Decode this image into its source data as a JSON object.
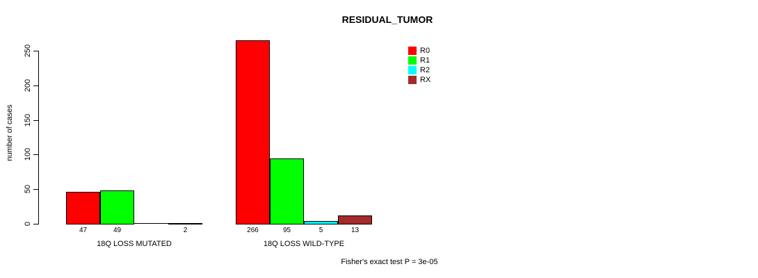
{
  "page": {
    "background": "#ffffff",
    "axis_color": "#000000",
    "bar_border_color": "#000000"
  },
  "chart_data": {
    "type": "bar",
    "title": "RESIDUAL_TUMOR",
    "xlabel": "",
    "ylabel": "number of cases",
    "ylim": [
      0,
      250
    ],
    "yticks": [
      0,
      50,
      100,
      150,
      200,
      250
    ],
    "grid": false,
    "legend_position": "top-right",
    "categories": [
      "18Q LOSS MUTATED",
      "18Q LOSS WILD-TYPE"
    ],
    "series": [
      {
        "name": "R0",
        "color": "#ff0000",
        "values": [
          47,
          266
        ]
      },
      {
        "name": "R1",
        "color": "#00ff00",
        "values": [
          49,
          95
        ]
      },
      {
        "name": "R2",
        "color": "#00ffff",
        "values": [
          0,
          5
        ]
      },
      {
        "name": "RX",
        "color": "#a52a2a",
        "values": [
          2,
          13
        ]
      }
    ],
    "bar_value_labels": [
      [
        "47",
        "49",
        "",
        "2"
      ],
      [
        "266",
        "95",
        "5",
        "13"
      ]
    ],
    "legend": [
      {
        "label": "R0",
        "color": "#ff0000"
      },
      {
        "label": "R1",
        "color": "#00ff00"
      },
      {
        "label": "R2",
        "color": "#00ffff"
      },
      {
        "label": "RX",
        "color": "#a52a2a"
      }
    ],
    "note": "Fisher's exact test P = 3e-05"
  }
}
